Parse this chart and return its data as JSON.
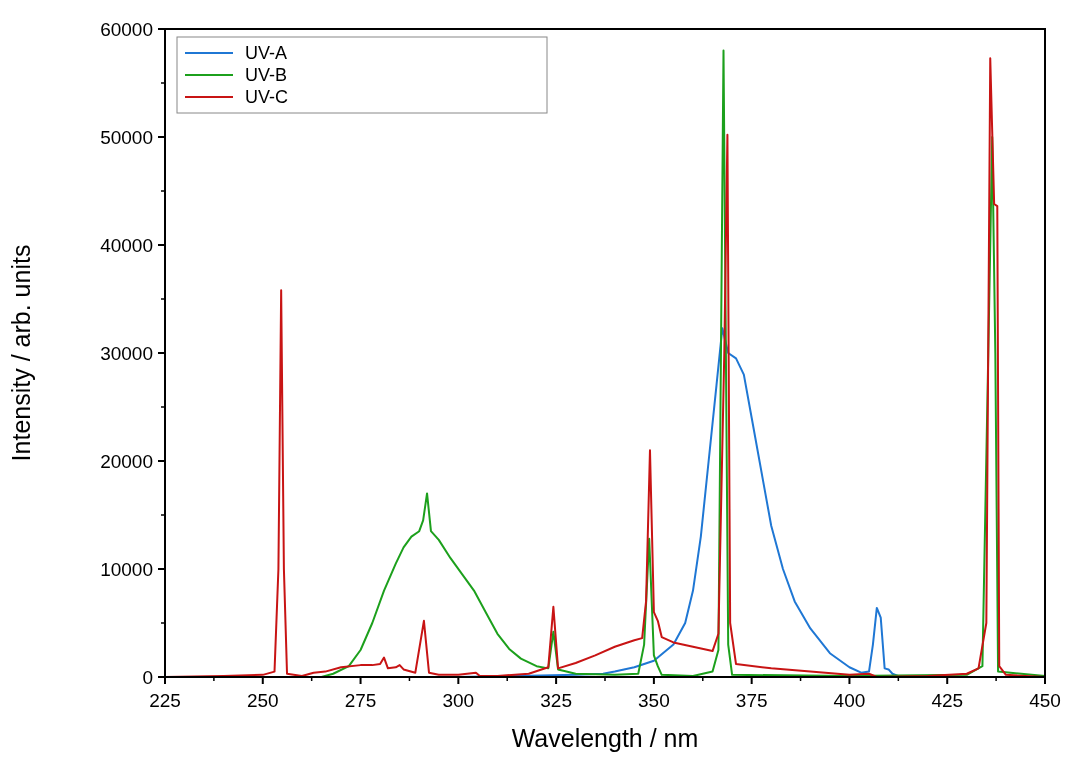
{
  "chart_data": {
    "type": "line",
    "xlabel": "Wavelength / nm",
    "ylabel": "Intensity / arb. units",
    "xlim": [
      225,
      450
    ],
    "ylim": [
      0,
      60000
    ],
    "xticks": [
      225,
      250,
      275,
      300,
      325,
      350,
      375,
      400,
      425,
      450
    ],
    "yticks": [
      0,
      10000,
      20000,
      30000,
      40000,
      50000,
      60000
    ],
    "legend": "top left",
    "grid": false,
    "marker": "none",
    "line_style": "solid",
    "series": [
      {
        "name": "UV-A",
        "color": "#1f77d4",
        "x": [
          225,
          300,
          315,
          330,
          337,
          340,
          345,
          350,
          355,
          358,
          360,
          362,
          364,
          366,
          367.5,
          369,
          371,
          373,
          375,
          378,
          380,
          383,
          386,
          390,
          395,
          400,
          403,
          405,
          406,
          407,
          408,
          409,
          410,
          411,
          413,
          430,
          450
        ],
        "values": [
          0,
          0,
          100,
          200,
          300,
          500,
          900,
          1500,
          3000,
          5000,
          8000,
          13000,
          20000,
          27000,
          32300,
          30000,
          29500,
          28000,
          24000,
          18000,
          14000,
          10000,
          7000,
          4500,
          2200,
          900,
          400,
          500,
          3000,
          6400,
          5500,
          800,
          700,
          300,
          0,
          0,
          0
        ]
      },
      {
        "name": "UV-B",
        "color": "#1ca01c",
        "x": [
          225,
          265,
          268,
          272,
          275,
          278,
          281,
          284,
          286,
          288,
          290,
          291,
          292,
          293,
          295,
          298,
          301,
          304,
          307,
          310,
          313,
          316,
          320,
          323,
          324.3,
          325.5,
          330,
          340,
          346,
          347.5,
          348.8,
          350,
          351,
          352,
          360,
          365,
          366.5,
          367.8,
          369,
          370,
          400,
          430,
          434,
          435.5,
          436.5,
          437.3,
          438,
          450
        ],
        "values": [
          0,
          0,
          300,
          1000,
          2500,
          5000,
          8000,
          10500,
          12000,
          13000,
          13500,
          14500,
          17000,
          13500,
          12700,
          11000,
          9500,
          8000,
          6000,
          4000,
          2600,
          1700,
          1000,
          800,
          4200,
          700,
          300,
          200,
          300,
          3000,
          12800,
          2000,
          1000,
          200,
          100,
          500,
          2500,
          58000,
          3000,
          200,
          100,
          200,
          1000,
          30000,
          50000,
          30000,
          500,
          100
        ]
      },
      {
        "name": "UV-C",
        "color": "#c81414",
        "x": [
          225,
          240,
          250,
          253,
          254,
          254.7,
          255.4,
          256.2,
          260,
          263,
          266,
          270,
          275,
          278,
          280,
          281,
          282,
          284,
          285,
          286,
          289,
          291.2,
          292.5,
          295,
          300,
          304.5,
          305.5,
          310,
          318,
          323,
          324.3,
          325.5,
          330,
          335,
          340,
          345,
          347,
          348,
          349,
          350,
          351,
          352,
          355,
          360,
          365,
          366.5,
          368,
          368.8,
          369.5,
          371,
          380,
          390,
          400,
          405,
          407,
          420,
          430,
          433,
          435,
          436,
          437,
          437.8,
          438.3,
          440,
          450
        ],
        "values": [
          0,
          100,
          200,
          500,
          10000,
          35800,
          10000,
          300,
          100,
          400,
          500,
          900,
          1100,
          1100,
          1200,
          1800,
          800,
          900,
          1100,
          700,
          400,
          5200,
          400,
          200,
          200,
          400,
          100,
          100,
          300,
          900,
          6500,
          800,
          1300,
          2000,
          2800,
          3400,
          3600,
          7000,
          21000,
          6000,
          5200,
          3700,
          3200,
          2800,
          2400,
          4000,
          30000,
          50200,
          5000,
          1200,
          800,
          500,
          200,
          300,
          0,
          100,
          300,
          800,
          5000,
          57300,
          43800,
          43600,
          1000,
          200,
          0
        ]
      }
    ]
  }
}
